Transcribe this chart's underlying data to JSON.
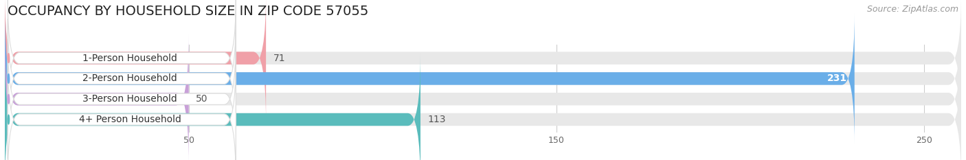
{
  "title": "OCCUPANCY BY HOUSEHOLD SIZE IN ZIP CODE 57055",
  "source": "Source: ZipAtlas.com",
  "categories": [
    "1-Person Household",
    "2-Person Household",
    "3-Person Household",
    "4+ Person Household"
  ],
  "values": [
    71,
    231,
    50,
    113
  ],
  "bar_colors": [
    "#f0a0a8",
    "#6aaee8",
    "#c8a0d8",
    "#5abcbc"
  ],
  "bar_bg_color": "#e8e8e8",
  "label_pill_color": "#ffffff",
  "background_color": "#ffffff",
  "xlim_max": 260,
  "xticks": [
    50,
    150,
    250
  ],
  "title_fontsize": 14,
  "source_fontsize": 9,
  "bar_label_fontsize": 10,
  "value_fontsize": 10,
  "grid_color": "#cccccc"
}
